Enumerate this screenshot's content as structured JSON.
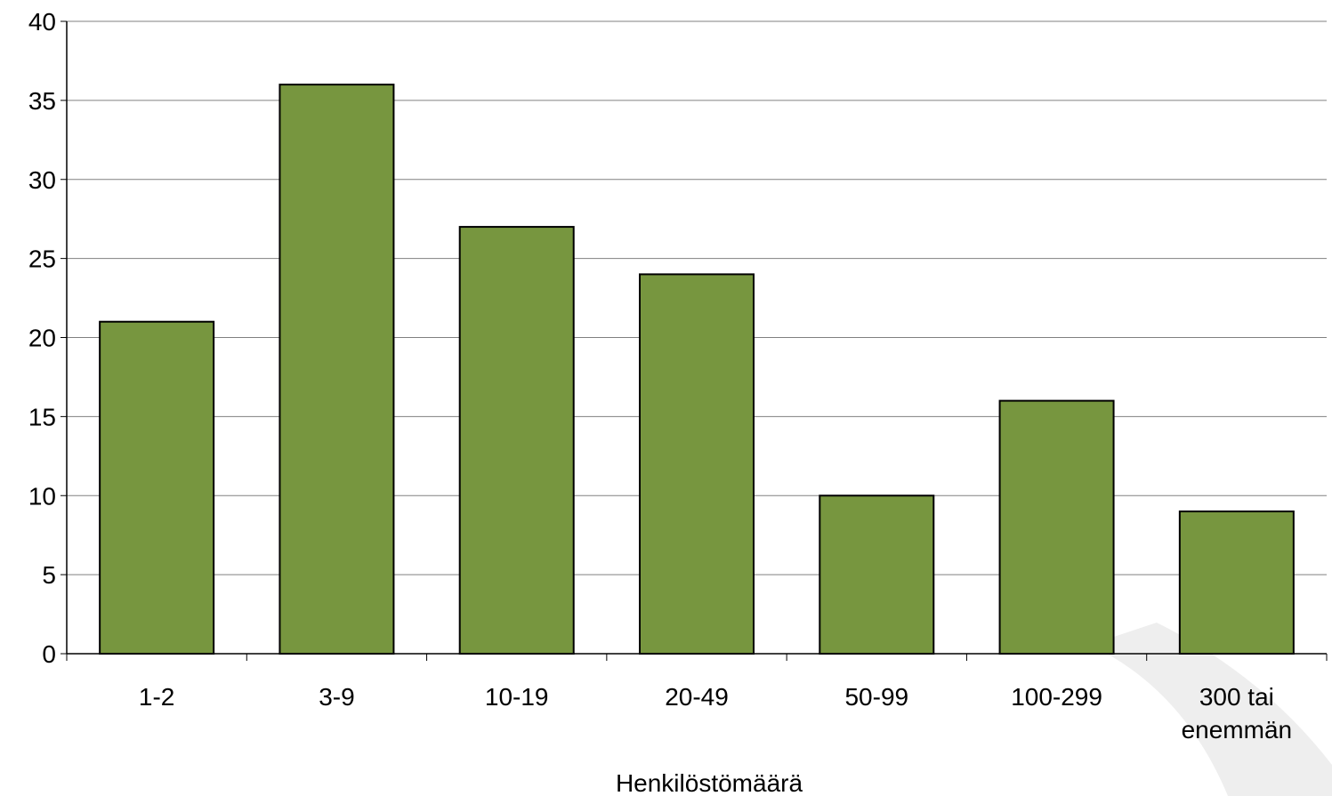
{
  "chart_data": {
    "type": "bar",
    "categories": [
      "1-2",
      "3-9",
      "10-19",
      "20-49",
      "50-99",
      "100-299",
      "300 tai enemmän"
    ],
    "values": [
      21,
      36,
      27,
      24,
      10,
      16,
      9
    ],
    "title": "",
    "xlabel": "Henkilöstömäärä",
    "ylabel": "",
    "ylim": [
      0,
      40
    ],
    "yticks": [
      0,
      5,
      10,
      15,
      20,
      25,
      30,
      35,
      40
    ],
    "grid": "horizontal",
    "legend": "none",
    "bar_color": "#77963f",
    "bar_edge_color": "#000000"
  }
}
